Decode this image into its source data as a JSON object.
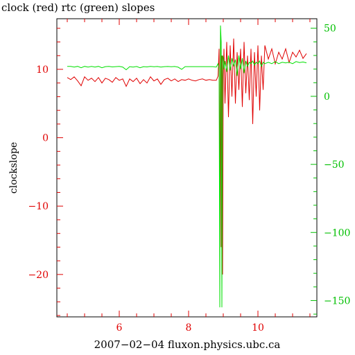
{
  "chart_data": {
    "type": "line",
    "title": "clock (red) rtc (green) slopes",
    "xlabel": "2007−02−04 fluxon.physics.ubc.ca",
    "ylabel": "clockslope",
    "xlim": [
      4.2,
      11.7
    ],
    "ylim_left": [
      -26.2,
      17.4
    ],
    "ylim_right": [
      -162,
      57
    ],
    "x_ticks": [
      6,
      8,
      10
    ],
    "y_left_ticks": [
      10,
      0,
      -10,
      -20
    ],
    "y_right_ticks": [
      50,
      0,
      -50,
      -100,
      -150
    ],
    "x_tick_labels": [
      "6",
      "8",
      "10"
    ],
    "y_left_tick_labels": [
      "10",
      "0",
      "−10",
      "−20"
    ],
    "y_right_tick_labels": [
      "50",
      "0",
      "−50",
      "−100",
      "−150"
    ],
    "colors": {
      "clock": "#e00000",
      "rtc": "#00e000",
      "left_axis": "#e00000",
      "right_axis": "#00c000"
    },
    "series": [
      {
        "key": "clock",
        "axis": "left",
        "color": "#e00000",
        "x": [
          4.5,
          4.6,
          4.7,
          4.8,
          4.9,
          5.0,
          5.1,
          5.2,
          5.3,
          5.4,
          5.5,
          5.6,
          5.7,
          5.8,
          5.9,
          6.0,
          6.1,
          6.2,
          6.3,
          6.4,
          6.5,
          6.6,
          6.7,
          6.8,
          6.9,
          7.0,
          7.1,
          7.2,
          7.3,
          7.4,
          7.5,
          7.6,
          7.7,
          7.8,
          7.9,
          8.0,
          8.1,
          8.2,
          8.3,
          8.4,
          8.5,
          8.6,
          8.7,
          8.8,
          8.85,
          8.88,
          8.9,
          8.92,
          8.94,
          8.96,
          8.98,
          9.0,
          9.02,
          9.05,
          9.1,
          9.15,
          9.2,
          9.25,
          9.3,
          9.35,
          9.4,
          9.45,
          9.5,
          9.55,
          9.6,
          9.65,
          9.7,
          9.75,
          9.8,
          9.85,
          9.9,
          9.95,
          10.0,
          10.05,
          10.1,
          10.15,
          10.2,
          10.3,
          10.4,
          10.5,
          10.6,
          10.7,
          10.8,
          10.9,
          11.0,
          11.1,
          11.2,
          11.3,
          11.4
        ],
        "y": [
          8.8,
          8.5,
          8.9,
          8.3,
          7.6,
          8.9,
          8.4,
          8.7,
          8.2,
          8.8,
          8.0,
          8.7,
          8.5,
          8.1,
          8.8,
          8.4,
          8.6,
          7.5,
          8.6,
          8.2,
          8.7,
          7.9,
          8.5,
          8.0,
          8.9,
          8.3,
          8.6,
          7.8,
          8.5,
          8.7,
          8.3,
          8.6,
          8.2,
          8.5,
          8.4,
          8.6,
          8.4,
          8.3,
          8.5,
          8.6,
          8.4,
          8.5,
          8.4,
          8.4,
          9.0,
          13.0,
          -10.0,
          15.0,
          -16.0,
          12.0,
          -20.0,
          9.0,
          13.0,
          5.0,
          14.0,
          3.0,
          13.5,
          6.0,
          14.5,
          5.0,
          12.5,
          7.0,
          13.0,
          4.5,
          14.0,
          6.5,
          12.0,
          5.5,
          13.0,
          2.0,
          12.5,
          6.0,
          13.5,
          4.0,
          12.0,
          7.0,
          13.5,
          11.5,
          13.0,
          10.8,
          12.5,
          11.5,
          13.0,
          11.0,
          12.5,
          11.8,
          12.8,
          11.6,
          12.3
        ]
      },
      {
        "key": "rtc",
        "axis": "right",
        "color": "#00e000",
        "x": [
          4.5,
          4.6,
          4.7,
          4.8,
          4.9,
          5.0,
          5.1,
          5.2,
          5.3,
          5.4,
          5.5,
          5.6,
          5.7,
          5.8,
          5.9,
          6.0,
          6.1,
          6.2,
          6.3,
          6.4,
          6.5,
          6.6,
          6.7,
          6.8,
          6.9,
          7.0,
          7.1,
          7.2,
          7.3,
          7.4,
          7.5,
          7.6,
          7.7,
          7.8,
          7.9,
          8.0,
          8.1,
          8.2,
          8.3,
          8.4,
          8.5,
          8.6,
          8.7,
          8.8,
          8.85,
          8.88,
          8.9,
          8.92,
          8.94,
          8.96,
          8.98,
          9.0,
          9.02,
          9.05,
          9.1,
          9.15,
          9.2,
          9.25,
          9.3,
          9.35,
          9.4,
          9.45,
          9.5,
          9.55,
          9.6,
          9.65,
          9.7,
          9.75,
          9.8,
          9.85,
          9.9,
          9.95,
          10.0,
          10.05,
          10.1,
          10.15,
          10.2,
          10.3,
          10.4,
          10.5,
          10.6,
          10.7,
          10.8,
          10.9,
          11.0,
          11.1,
          11.2,
          11.3,
          11.4
        ],
        "y": [
          22,
          22,
          21.5,
          22,
          21,
          22,
          21.5,
          22,
          21.5,
          22,
          21,
          21.8,
          22,
          21.6,
          21.8,
          22,
          21.5,
          19.5,
          21.8,
          21.5,
          21.9,
          21,
          21.8,
          21.6,
          22,
          21.7,
          21.9,
          21.5,
          21.8,
          21.9,
          21.7,
          21.9,
          21.4,
          19.8,
          21.8,
          21.8,
          21.8,
          21.8,
          21.8,
          21.8,
          21.8,
          21.8,
          21.8,
          21.5,
          24,
          20,
          -155,
          52,
          40,
          -155,
          30,
          28,
          20,
          26,
          18,
          30,
          19,
          28,
          22,
          27,
          15,
          30,
          20,
          28,
          17,
          26,
          22,
          25,
          24,
          26,
          23,
          25,
          24,
          26,
          22,
          25,
          24,
          25,
          24,
          25.5,
          24,
          25,
          24.5,
          25,
          24,
          25.5,
          24.8,
          25.2,
          24.6
        ]
      }
    ],
    "grid": false,
    "legend": "none"
  }
}
